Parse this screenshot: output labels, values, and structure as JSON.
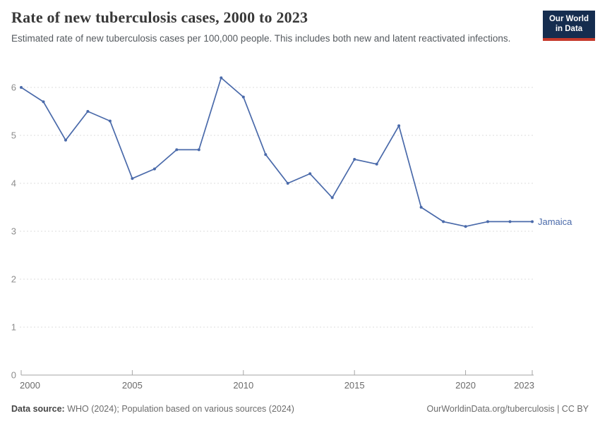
{
  "logo": {
    "line1": "Our World",
    "line2": "in Data",
    "bg_color": "#152D4F",
    "bar_color": "#C5392B"
  },
  "colors": {
    "line_blue": "#4A6AAA",
    "title_gray": "#383838",
    "subtitle_gray": "#555a5f",
    "gridline_gray": "#dcdcdc",
    "axis_gray": "#a6a6a6",
    "tick_label_gray": "#6b6b6b"
  },
  "chart_data": {
    "type": "line",
    "title": "Rate of new tuberculosis cases, 2000 to 2023",
    "subtitle": "Estimated rate of new tuberculosis cases per 100,000 people. This includes both new and latent reactivated infections.",
    "x": [
      2000,
      2001,
      2002,
      2003,
      2004,
      2005,
      2006,
      2007,
      2008,
      2009,
      2010,
      2011,
      2012,
      2013,
      2014,
      2015,
      2016,
      2017,
      2018,
      2019,
      2020,
      2021,
      2022,
      2023
    ],
    "series": [
      {
        "name": "Jamaica",
        "color": "#4A6AAA",
        "values": [
          6.0,
          5.7,
          4.9,
          5.5,
          5.3,
          4.1,
          4.3,
          4.7,
          4.7,
          6.2,
          5.8,
          4.6,
          4.0,
          4.2,
          3.7,
          4.5,
          4.4,
          5.2,
          3.5,
          3.2,
          3.1,
          3.2,
          3.2,
          3.2
        ]
      }
    ],
    "xlabel": "",
    "ylabel": "",
    "xlim": [
      2000,
      2023
    ],
    "ylim": [
      0,
      6.3
    ],
    "yticks": [
      0,
      1,
      2,
      3,
      4,
      5,
      6
    ],
    "xticks": [
      2000,
      2005,
      2010,
      2015,
      2020,
      2023
    ],
    "grid": "dashed horizontal",
    "legend_position": "end-of-line label"
  },
  "footer": {
    "datasource_label": "Data source:",
    "datasource_text": "WHO (2024); Population based on various sources (2024)",
    "link_text": "OurWorldinData.org/tuberculosis | CC BY"
  }
}
